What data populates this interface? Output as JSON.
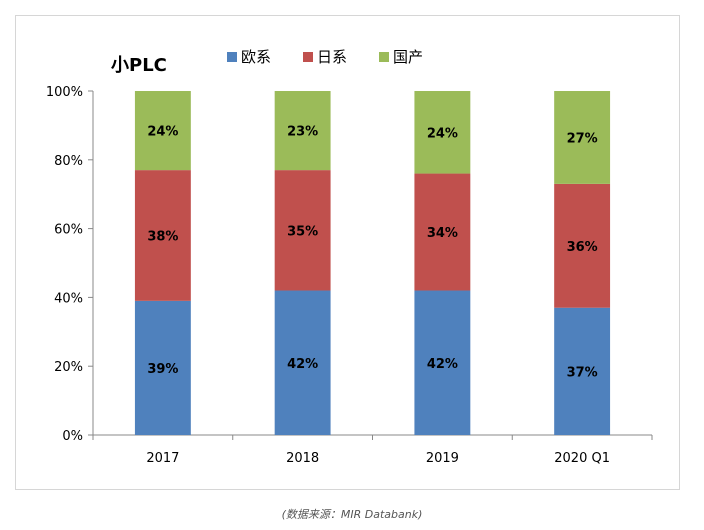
{
  "chart_data": {
    "type": "bar",
    "stacked": true,
    "title": "小PLC",
    "categories": [
      "2017",
      "2018",
      "2019",
      "2020 Q1"
    ],
    "series": [
      {
        "name": "欧系",
        "color": "#4f81bd",
        "values": [
          39,
          42,
          42,
          37
        ]
      },
      {
        "name": "日系",
        "color": "#c0504d",
        "values": [
          38,
          35,
          34,
          36
        ]
      },
      {
        "name": "国产",
        "color": "#9bbb59",
        "values": [
          24,
          23,
          24,
          27
        ]
      }
    ],
    "ylim": [
      0,
      100
    ],
    "yticks": [
      "0%",
      "20%",
      "40%",
      "60%",
      "80%",
      "100%"
    ],
    "value_suffix": "%",
    "legend_position": "top",
    "grid": false
  },
  "source_note": "(数据来源：MIR Databank)"
}
